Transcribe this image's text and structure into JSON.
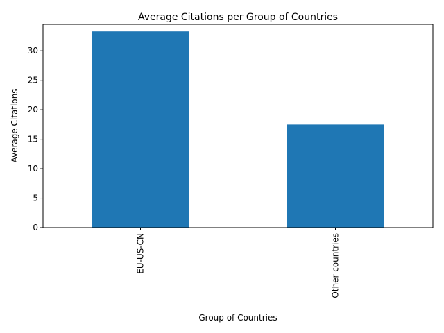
{
  "chart_data": {
    "type": "bar",
    "title": "Average Citations per Group of Countries",
    "xlabel": "Group of Countries",
    "ylabel": "Average Citations",
    "categories": [
      "EU-US-CN",
      "Other countries"
    ],
    "values": [
      33.3,
      17.5
    ],
    "ylim": [
      0,
      34.5
    ],
    "yticks": [
      0,
      5,
      10,
      15,
      20,
      25,
      30
    ],
    "grid": false,
    "legend": "none",
    "bar_color": "#1f77b4",
    "x_tick_rotation": "vertical"
  }
}
